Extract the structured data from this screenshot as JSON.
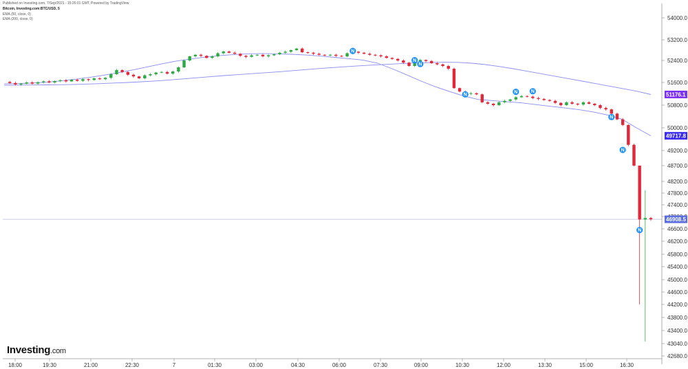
{
  "header": {
    "published": "Published on Investing.com, 7/Sep/2021 - 15:26:01 GMT, Powered by TradingView",
    "title": "Bitcoin, Investing.com:BTC/USD, 5",
    "ema50": "EMA (50, close, 0)",
    "ema200": "EMA (200, close, 0)"
  },
  "logo": {
    "main": "Investing",
    "suffix": ".com"
  },
  "colors": {
    "up": "#2eaa44",
    "down": "#e0283a",
    "ema": "#8a8cf0",
    "ema200_badge": "#7b2ff7",
    "ema50_badge": "#3a2af0",
    "price_badge": "#5b6ee1",
    "news": "#1e90ff"
  },
  "chart_data": {
    "type": "candlestick",
    "y_ticks": [
      "54000.0",
      "53200.0",
      "52400.0",
      "51600.0",
      "50800.0",
      "50000.0",
      "49200.0",
      "48700.0",
      "48200.0",
      "47800.0",
      "47400.0",
      "47000.0",
      "46600.0",
      "46200.0",
      "45800.0",
      "45400.0",
      "45000.0",
      "44600.0",
      "44200.0",
      "43800.0",
      "43400.0",
      "43040.0",
      "42680.0"
    ],
    "y_tick_values": [
      54000,
      53200,
      52400,
      51600,
      50800,
      50000,
      49200,
      48700,
      48200,
      47800,
      47400,
      47000,
      46600,
      46200,
      45800,
      45400,
      45000,
      44600,
      44200,
      43800,
      43400,
      43040,
      42680
    ],
    "x_ticks": [
      "18:00",
      "19:30",
      "21:00",
      "22:30",
      "7",
      "01:30",
      "03:00",
      "04:30",
      "06:00",
      "07:30",
      "09:00",
      "10:30",
      "12:00",
      "13:30",
      "15:00",
      "16:30"
    ],
    "last_price": 46908.5,
    "last_price_label": "46908.5",
    "ema200_label": "51176.1",
    "ema50_label": "49717.8",
    "closes": [
      51620,
      51580,
      51530,
      51560,
      51600,
      51560,
      51610,
      51640,
      51600,
      51650,
      51680,
      51640,
      51700,
      51660,
      51720,
      51690,
      51750,
      51720,
      51770,
      51900,
      52050,
      51980,
      51880,
      51820,
      51750,
      51860,
      51900,
      51960,
      51980,
      51920,
      52000,
      52150,
      52400,
      52560,
      52620,
      52580,
      52500,
      52560,
      52680,
      52750,
      52700,
      52660,
      52580,
      52540,
      52600,
      52620,
      52560,
      52600,
      52640,
      52700,
      52740,
      52800,
      52860,
      52720,
      52700,
      52660,
      52620,
      52600,
      52620,
      52580,
      52560,
      52680,
      52740,
      52700,
      52660,
      52620,
      52600,
      52560,
      52500,
      52460,
      52400,
      52320,
      52200,
      52360,
      52420,
      52380,
      52300,
      52260,
      52200,
      52100,
      51400,
      51280,
      51200,
      51220,
      51180,
      50900,
      50850,
      50800,
      50900,
      50950,
      51000,
      51080,
      51120,
      51100,
      51050,
      51020,
      50980,
      50950,
      50880,
      50800,
      50900,
      50850,
      50820,
      50900,
      50850,
      50800,
      50700,
      50650,
      50500,
      50300,
      50100,
      49400,
      48700,
      46900,
      46950,
      46908.5
    ],
    "ema200": [
      51500,
      51505,
      51510,
      51515,
      51520,
      51530,
      51545,
      51560,
      51580,
      51600,
      51625,
      51655,
      51690,
      51730,
      51770,
      51810,
      51850,
      51885,
      51920,
      51955,
      51990,
      52030,
      52070,
      52110,
      52145,
      52180,
      52210,
      52240,
      52265,
      52290,
      52310,
      52325,
      52335,
      52330,
      52300,
      52250,
      52180,
      52100,
      52010,
      51920,
      51830,
      51740,
      51650,
      51560,
      51470,
      51380,
      51290,
      51176.1
    ],
    "ema50": [
      51550,
      51560,
      51580,
      51610,
      51660,
      51720,
      51790,
      51870,
      51960,
      52060,
      52170,
      52280,
      52380,
      52460,
      52530,
      52590,
      52630,
      52660,
      52670,
      52660,
      52640,
      52610,
      52570,
      52520,
      52470,
      52410,
      52300,
      52100,
      51880,
      51650,
      51450,
      51280,
      51120,
      51000,
      50960,
      50920,
      50880,
      50820,
      50760,
      50700,
      50640,
      50560,
      50450,
      50300,
      50000,
      49717.8
    ],
    "news_markers": [
      {
        "label": "N",
        "time_index": 62,
        "price": 52770
      },
      {
        "label": "N",
        "time_index": 73,
        "price": 52410
      },
      {
        "label": "N",
        "time_index": 74,
        "price": 52270
      },
      {
        "label": "N",
        "time_index": 82,
        "price": 51180
      },
      {
        "label": "N",
        "time_index": 91,
        "price": 51270
      },
      {
        "label": "N",
        "time_index": 94,
        "price": 51290
      },
      {
        "label": "N",
        "time_index": 108,
        "price": 50380
      },
      {
        "label": "N",
        "time_index": 110,
        "price": 49220
      },
      {
        "label": "N",
        "time_index": 113,
        "price": 46560
      }
    ]
  }
}
